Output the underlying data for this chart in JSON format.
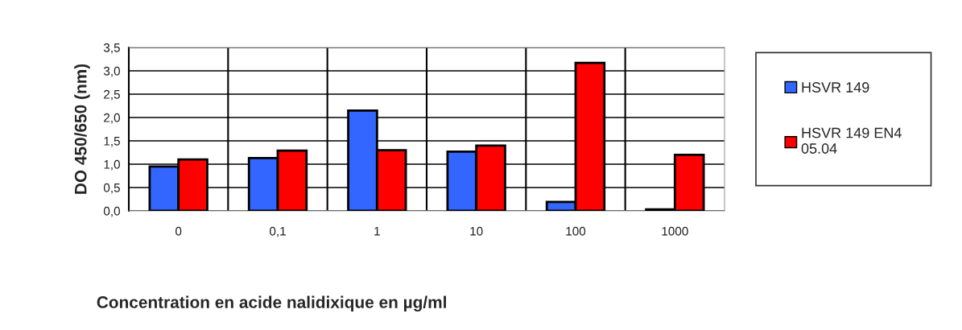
{
  "chart_data": {
    "type": "bar",
    "xlabel": "Concentration en acide nalidixique en µg/ml",
    "ylabel": "DO 450/650 (nm)",
    "categories": [
      "0",
      "0,1",
      "1",
      "10",
      "100",
      "1000"
    ],
    "series": [
      {
        "name": "HSVR 149",
        "color": "#3366ff",
        "values": [
          0.95,
          1.13,
          2.15,
          1.27,
          0.19,
          0.03
        ]
      },
      {
        "name": "HSVR 149 EN4\n05.04",
        "color": "#ff0000",
        "values": [
          1.1,
          1.29,
          1.3,
          1.4,
          3.17,
          1.2
        ]
      }
    ],
    "ylim": [
      0,
      3.5
    ],
    "yticks": [
      {
        "value": 0,
        "label": "0,0"
      },
      {
        "value": 0.5,
        "label": "0,5"
      },
      {
        "value": 1,
        "label": "1,0"
      },
      {
        "value": 1.5,
        "label": "1,5"
      },
      {
        "value": 2,
        "label": "2,0"
      },
      {
        "value": 2.5,
        "label": "2,5"
      },
      {
        "value": 3,
        "label": "3,0"
      },
      {
        "value": 3.5,
        "label": "3,5"
      }
    ],
    "grid": true,
    "legend": "right"
  }
}
